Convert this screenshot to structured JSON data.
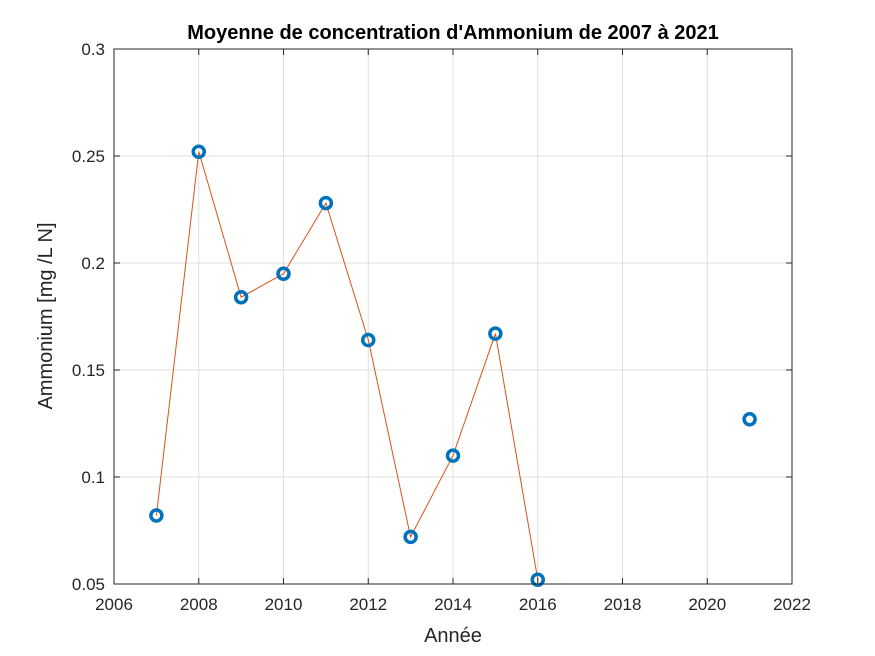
{
  "chart_data": {
    "type": "line",
    "title": "Moyenne de concentration d'Ammonium de 2007 à 2021",
    "xlabel": "Année",
    "ylabel": "Ammonium [mg /L N]",
    "xlim": [
      2006,
      2022
    ],
    "ylim": [
      0.05,
      0.3
    ],
    "xticks": [
      2006,
      2008,
      2010,
      2012,
      2014,
      2016,
      2018,
      2020,
      2022
    ],
    "xtick_labels": [
      "2006",
      "2008",
      "2010",
      "2012",
      "2014",
      "2016",
      "2018",
      "2020",
      "2022"
    ],
    "yticks": [
      0.05,
      0.1,
      0.15,
      0.2,
      0.25,
      0.3
    ],
    "ytick_labels": [
      "0.05",
      "0.1",
      "0.15",
      "0.2",
      "0.25",
      "0.3"
    ],
    "grid": true,
    "series": [
      {
        "style": "markers-with-line",
        "marker": "circle",
        "marker_color": "#0072bd",
        "line_color": "#d95319",
        "points": [
          {
            "x": 2007,
            "y": 0.082
          },
          {
            "x": 2008,
            "y": 0.252
          },
          {
            "x": 2009,
            "y": 0.184
          },
          {
            "x": 2010,
            "y": 0.195
          },
          {
            "x": 2011,
            "y": 0.228
          },
          {
            "x": 2012,
            "y": 0.164
          },
          {
            "x": 2013,
            "y": 0.072
          },
          {
            "x": 2014,
            "y": 0.11
          },
          {
            "x": 2015,
            "y": 0.167
          },
          {
            "x": 2016,
            "y": 0.052
          },
          {
            "x": 2021,
            "y": 0.127
          }
        ],
        "line_points": [
          {
            "x": 2007,
            "y": 0.082
          },
          {
            "x": 2008,
            "y": 0.252
          },
          {
            "x": 2009,
            "y": 0.184
          },
          {
            "x": 2010,
            "y": 0.195
          },
          {
            "x": 2011,
            "y": 0.228
          },
          {
            "x": 2012,
            "y": 0.164
          },
          {
            "x": 2013,
            "y": 0.072
          },
          {
            "x": 2014,
            "y": 0.11
          },
          {
            "x": 2015,
            "y": 0.167
          },
          {
            "x": 2016,
            "y": 0.052
          }
        ]
      }
    ]
  }
}
